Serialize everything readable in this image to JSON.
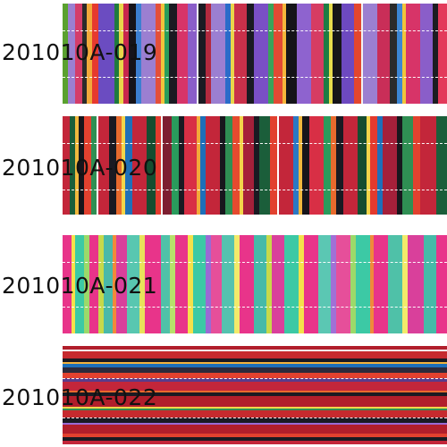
{
  "products": [
    {
      "code": "201010A-019",
      "pattern": "vertical-stripes",
      "dominant_colors": [
        "#9b7fd1",
        "#d73468",
        "#1a1a22"
      ]
    },
    {
      "code": "201010A-020",
      "pattern": "vertical-stripes",
      "dominant_colors": [
        "#c3263a",
        "#1b5e3a",
        "#1a1a22"
      ]
    },
    {
      "code": "201010A-021",
      "pattern": "vertical-stripes",
      "dominant_colors": [
        "#e8348a",
        "#3cc9a5",
        "#f5e14a"
      ]
    },
    {
      "code": "201010A-022",
      "pattern": "horizontal-stripes",
      "dominant_colors": [
        "#b11e2b",
        "#1a1a22",
        "#1d6fb9"
      ]
    }
  ]
}
